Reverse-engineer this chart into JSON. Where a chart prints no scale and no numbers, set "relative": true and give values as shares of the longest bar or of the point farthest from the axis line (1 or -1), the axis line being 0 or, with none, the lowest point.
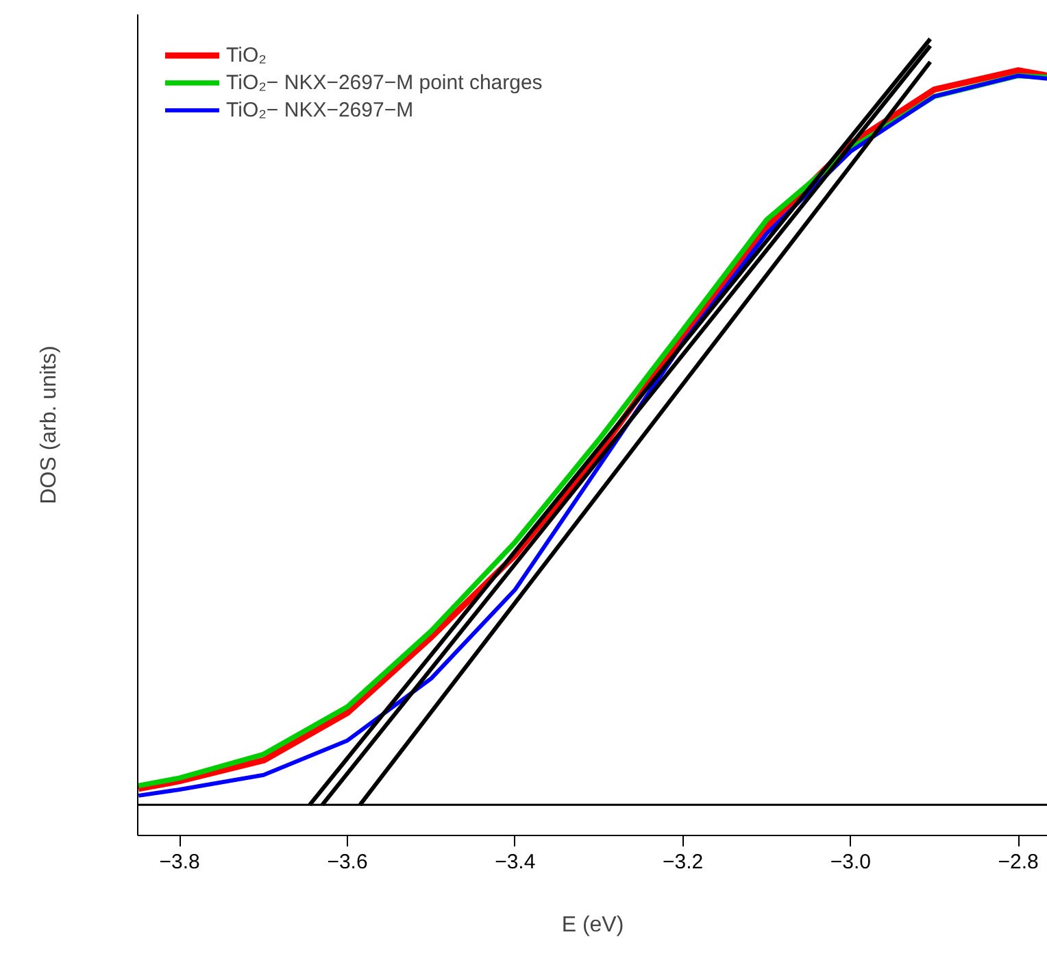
{
  "chart_data": {
    "type": "line",
    "relative": true,
    "xlabel": "E (eV)",
    "ylabel": "DOS (arb. units)",
    "xlim": [
      -3.85,
      -2.765
    ],
    "xticks": [
      {
        "value": -3.8,
        "label": "−3.8"
      },
      {
        "value": -3.6,
        "label": "−3.6"
      },
      {
        "value": -3.4,
        "label": "−3.4"
      },
      {
        "value": -3.2,
        "label": "−3.2"
      },
      {
        "value": -3.0,
        "label": "−3.0"
      },
      {
        "value": -2.8,
        "label": "−2.8"
      }
    ],
    "x": [
      -3.849,
      -3.8,
      -3.7,
      -3.6,
      -3.5,
      -3.4,
      -3.3,
      -3.2,
      -3.1,
      -3.0,
      -2.9,
      -2.8,
      -2.765
    ],
    "series": [
      {
        "name": "TiO₂",
        "color": "#ff0000",
        "values": [
          0.021,
          0.031,
          0.058,
          0.12,
          0.219,
          0.326,
          0.46,
          0.612,
          0.755,
          0.863,
          0.934,
          0.959,
          0.952
        ]
      },
      {
        "name": "TiO₂− NKX−2697−M point charges",
        "color": "#00cd00",
        "values": [
          0.025,
          0.035,
          0.066,
          0.128,
          0.227,
          0.343,
          0.477,
          0.62,
          0.764,
          0.857,
          0.925,
          0.952,
          0.95
        ]
      },
      {
        "name": "TiO₂− NKX−2697−M",
        "color": "#0000ff",
        "values": [
          0.012,
          0.02,
          0.039,
          0.084,
          0.165,
          0.281,
          0.442,
          0.603,
          0.746,
          0.853,
          0.925,
          0.952,
          0.948
        ]
      },
      {
        "color": "#000000",
        "x": [
          -3.645,
          -2.905
        ],
        "values": [
          0,
          1.0
        ]
      },
      {
        "color": "#000000",
        "x": [
          -3.63,
          -2.905
        ],
        "values": [
          0,
          0.991
        ]
      },
      {
        "color": "#000000",
        "x": [
          -3.585,
          -2.905
        ],
        "values": [
          0,
          0.97
        ]
      }
    ],
    "ref_lines": [
      {
        "axis": "y",
        "value": 0,
        "color": "#000000"
      }
    ],
    "legend": "top left",
    "grid": false
  }
}
